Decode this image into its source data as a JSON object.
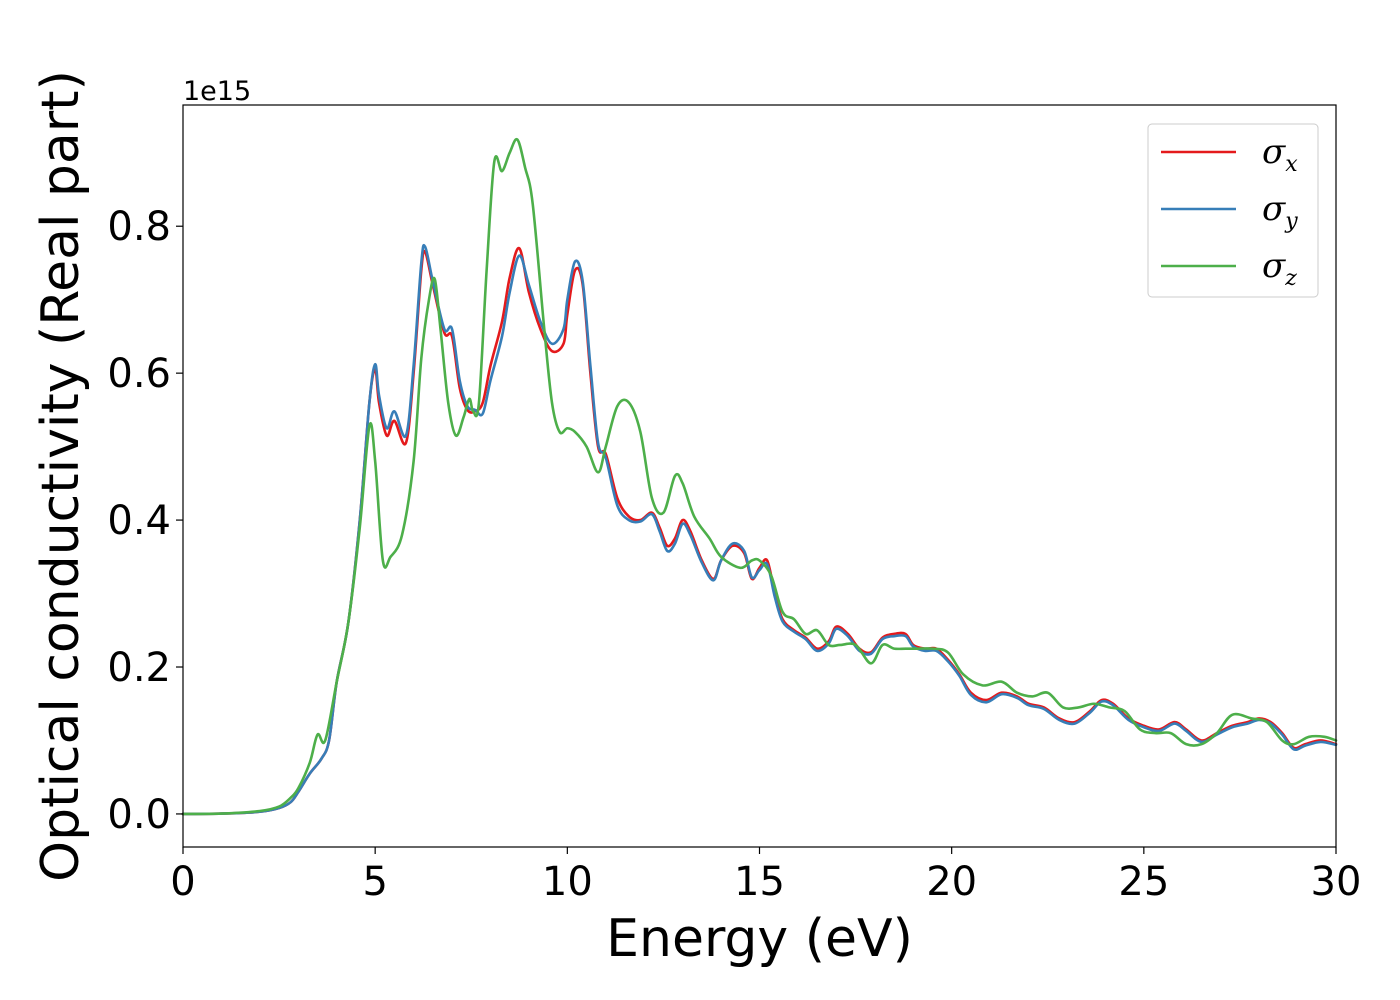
{
  "chart_data": {
    "type": "line",
    "title": "",
    "xlabel": "Energy (eV)",
    "ylabel": "Optical conductivity (Real part)",
    "y_offset_label": "1e15",
    "xlim": [
      0,
      30
    ],
    "ylim": [
      -0.045,
      0.965
    ],
    "xticks": [
      0,
      5,
      10,
      15,
      20,
      25,
      30
    ],
    "xtick_labels": [
      "0",
      "5",
      "10",
      "15",
      "20",
      "25",
      "30"
    ],
    "yticks": [
      0.0,
      0.2,
      0.4,
      0.6,
      0.8
    ],
    "ytick_labels": [
      "0.0",
      "0.2",
      "0.4",
      "0.6",
      "0.8"
    ],
    "grid": false,
    "legend_position": "top-right",
    "series": [
      {
        "name": "σx",
        "symbol": "σ",
        "subscript": "x",
        "color": "#e41a1c",
        "x": [
          0,
          1,
          2,
          2.5,
          2.8,
          3.0,
          3.3,
          3.6,
          3.8,
          4.0,
          4.3,
          4.6,
          4.85,
          5.0,
          5.1,
          5.3,
          5.5,
          5.8,
          6.0,
          6.2,
          6.3,
          6.5,
          6.8,
          7.0,
          7.2,
          7.4,
          7.6,
          7.8,
          8.0,
          8.3,
          8.5,
          8.75,
          9.0,
          9.3,
          9.6,
          9.9,
          10.0,
          10.2,
          10.4,
          10.6,
          10.8,
          11.0,
          11.3,
          11.6,
          11.9,
          12.2,
          12.4,
          12.6,
          12.8,
          13.0,
          13.2,
          13.5,
          13.8,
          14.0,
          14.3,
          14.6,
          14.8,
          15.0,
          15.2,
          15.4,
          15.6,
          15.9,
          16.2,
          16.5,
          16.8,
          17.0,
          17.3,
          17.6,
          17.9,
          18.2,
          18.5,
          18.8,
          19.0,
          19.3,
          19.6,
          19.9,
          20.2,
          20.5,
          20.9,
          21.3,
          21.7,
          22.0,
          22.4,
          22.8,
          23.2,
          23.6,
          23.9,
          24.2,
          24.6,
          25.0,
          25.4,
          25.8,
          26.1,
          26.5,
          26.9,
          27.3,
          27.7,
          28.0,
          28.3,
          28.6,
          28.9,
          29.2,
          29.6,
          30.0
        ],
        "y": [
          0,
          0.0005,
          0.003,
          0.008,
          0.016,
          0.03,
          0.055,
          0.075,
          0.1,
          0.18,
          0.26,
          0.4,
          0.56,
          0.605,
          0.56,
          0.515,
          0.535,
          0.505,
          0.6,
          0.74,
          0.765,
          0.72,
          0.655,
          0.65,
          0.58,
          0.55,
          0.548,
          0.56,
          0.61,
          0.67,
          0.73,
          0.77,
          0.71,
          0.66,
          0.63,
          0.64,
          0.68,
          0.74,
          0.72,
          0.6,
          0.5,
          0.49,
          0.43,
          0.405,
          0.4,
          0.41,
          0.39,
          0.365,
          0.375,
          0.4,
          0.385,
          0.345,
          0.32,
          0.345,
          0.365,
          0.355,
          0.32,
          0.335,
          0.345,
          0.3,
          0.265,
          0.25,
          0.24,
          0.225,
          0.235,
          0.255,
          0.245,
          0.225,
          0.22,
          0.24,
          0.245,
          0.245,
          0.23,
          0.225,
          0.225,
          0.21,
          0.19,
          0.165,
          0.155,
          0.165,
          0.16,
          0.15,
          0.145,
          0.13,
          0.125,
          0.14,
          0.155,
          0.15,
          0.13,
          0.12,
          0.115,
          0.125,
          0.115,
          0.1,
          0.11,
          0.12,
          0.125,
          0.13,
          0.125,
          0.11,
          0.09,
          0.095,
          0.1,
          0.095
        ]
      },
      {
        "name": "σy",
        "symbol": "σ",
        "subscript": "y",
        "color": "#377eb8",
        "x": [
          0,
          1,
          2,
          2.5,
          2.8,
          3.0,
          3.3,
          3.6,
          3.8,
          4.0,
          4.3,
          4.6,
          4.85,
          5.0,
          5.1,
          5.3,
          5.5,
          5.8,
          6.0,
          6.2,
          6.3,
          6.5,
          6.8,
          7.0,
          7.2,
          7.4,
          7.6,
          7.8,
          8.0,
          8.3,
          8.5,
          8.75,
          9.0,
          9.3,
          9.6,
          9.9,
          10.0,
          10.2,
          10.4,
          10.6,
          10.8,
          11.0,
          11.3,
          11.6,
          11.9,
          12.2,
          12.4,
          12.6,
          12.8,
          13.0,
          13.2,
          13.5,
          13.8,
          14.0,
          14.3,
          14.6,
          14.8,
          15.0,
          15.2,
          15.4,
          15.6,
          15.9,
          16.2,
          16.5,
          16.8,
          17.0,
          17.3,
          17.6,
          17.9,
          18.2,
          18.5,
          18.8,
          19.0,
          19.3,
          19.6,
          19.9,
          20.2,
          20.5,
          20.9,
          21.3,
          21.7,
          22.0,
          22.4,
          22.8,
          23.2,
          23.6,
          23.9,
          24.2,
          24.6,
          25.0,
          25.4,
          25.8,
          26.1,
          26.5,
          26.9,
          27.3,
          27.7,
          28.0,
          28.3,
          28.6,
          28.9,
          29.2,
          29.6,
          30.0
        ],
        "y": [
          0,
          0.0005,
          0.003,
          0.008,
          0.016,
          0.03,
          0.055,
          0.075,
          0.1,
          0.18,
          0.26,
          0.4,
          0.56,
          0.612,
          0.57,
          0.525,
          0.548,
          0.515,
          0.61,
          0.75,
          0.772,
          0.725,
          0.66,
          0.66,
          0.59,
          0.555,
          0.55,
          0.545,
          0.59,
          0.65,
          0.71,
          0.76,
          0.72,
          0.67,
          0.64,
          0.66,
          0.7,
          0.752,
          0.725,
          0.61,
          0.505,
          0.485,
          0.42,
          0.4,
          0.398,
          0.408,
          0.385,
          0.358,
          0.368,
          0.395,
          0.38,
          0.342,
          0.318,
          0.345,
          0.368,
          0.358,
          0.322,
          0.332,
          0.34,
          0.295,
          0.262,
          0.248,
          0.238,
          0.222,
          0.232,
          0.252,
          0.242,
          0.222,
          0.218,
          0.238,
          0.242,
          0.242,
          0.228,
          0.222,
          0.222,
          0.208,
          0.188,
          0.162,
          0.152,
          0.163,
          0.158,
          0.148,
          0.143,
          0.128,
          0.123,
          0.138,
          0.153,
          0.148,
          0.128,
          0.118,
          0.113,
          0.123,
          0.113,
          0.098,
          0.108,
          0.118,
          0.123,
          0.128,
          0.123,
          0.108,
          0.088,
          0.093,
          0.098,
          0.094
        ]
      },
      {
        "name": "σz",
        "symbol": "σ",
        "subscript": "z",
        "color": "#4daf4a",
        "x": [
          0,
          1,
          2,
          2.5,
          2.8,
          3.0,
          3.3,
          3.5,
          3.7,
          4.0,
          4.3,
          4.6,
          4.85,
          5.0,
          5.2,
          5.4,
          5.7,
          6.0,
          6.2,
          6.4,
          6.55,
          6.7,
          6.9,
          7.1,
          7.3,
          7.45,
          7.55,
          7.7,
          7.9,
          8.1,
          8.3,
          8.5,
          8.7,
          8.9,
          9.1,
          9.4,
          9.6,
          9.8,
          10.0,
          10.2,
          10.5,
          10.8,
          11.0,
          11.3,
          11.6,
          11.9,
          12.2,
          12.5,
          12.8,
          13.0,
          13.3,
          13.7,
          14.0,
          14.5,
          14.8,
          15.0,
          15.3,
          15.6,
          15.9,
          16.2,
          16.5,
          16.8,
          17.1,
          17.5,
          17.9,
          18.2,
          18.5,
          18.8,
          19.1,
          19.5,
          19.9,
          20.3,
          20.8,
          21.3,
          21.7,
          22.1,
          22.5,
          22.9,
          23.3,
          23.7,
          24.1,
          24.5,
          24.9,
          25.3,
          25.7,
          26.1,
          26.5,
          26.9,
          27.3,
          27.8,
          28.2,
          28.6,
          28.9,
          29.3,
          29.7,
          30.0
        ],
        "y": [
          0,
          0.0005,
          0.004,
          0.01,
          0.022,
          0.035,
          0.07,
          0.108,
          0.1,
          0.18,
          0.26,
          0.39,
          0.528,
          0.48,
          0.345,
          0.35,
          0.38,
          0.48,
          0.62,
          0.7,
          0.728,
          0.66,
          0.56,
          0.515,
          0.54,
          0.565,
          0.548,
          0.56,
          0.74,
          0.888,
          0.875,
          0.9,
          0.918,
          0.88,
          0.83,
          0.66,
          0.56,
          0.52,
          0.525,
          0.52,
          0.5,
          0.465,
          0.5,
          0.555,
          0.56,
          0.52,
          0.43,
          0.41,
          0.46,
          0.45,
          0.405,
          0.375,
          0.35,
          0.335,
          0.345,
          0.345,
          0.325,
          0.275,
          0.265,
          0.245,
          0.25,
          0.23,
          0.23,
          0.23,
          0.205,
          0.23,
          0.225,
          0.225,
          0.225,
          0.225,
          0.22,
          0.19,
          0.175,
          0.18,
          0.165,
          0.16,
          0.165,
          0.145,
          0.145,
          0.15,
          0.145,
          0.14,
          0.115,
          0.11,
          0.11,
          0.095,
          0.095,
          0.11,
          0.135,
          0.13,
          0.125,
          0.1,
          0.095,
          0.105,
          0.105,
          0.1
        ]
      }
    ]
  }
}
